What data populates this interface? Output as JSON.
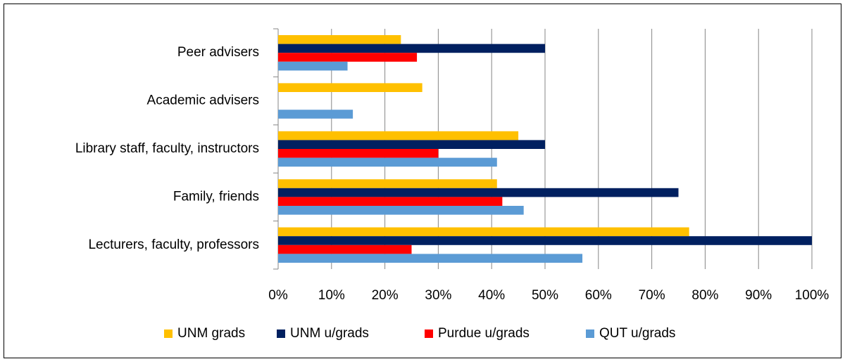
{
  "chart_data": {
    "type": "hbar",
    "categories": [
      "Peer advisers",
      "Academic advisers",
      "Library staff, faculty, instructors",
      "Family, friends",
      "Lecturers, faculty, professors"
    ],
    "series": [
      {
        "name": "UNM grads",
        "color": "#FFC000",
        "values": [
          23,
          27,
          45,
          41,
          77
        ]
      },
      {
        "name": "UNM u/grads",
        "color": "#002060",
        "values": [
          50,
          null,
          50,
          75,
          100
        ]
      },
      {
        "name": "Purdue u/grads",
        "color": "#FF0000",
        "values": [
          26,
          null,
          30,
          42,
          25
        ]
      },
      {
        "name": "QUT u/grads",
        "color": "#5B9BD5",
        "values": [
          13,
          14,
          41,
          46,
          57
        ]
      }
    ],
    "xlim": [
      0,
      100
    ],
    "xticks": [
      {
        "value": 0,
        "label": "0%"
      },
      {
        "value": 10,
        "label": "10%"
      },
      {
        "value": 20,
        "label": "20%"
      },
      {
        "value": 30,
        "label": "30%"
      },
      {
        "value": 40,
        "label": "40%"
      },
      {
        "value": 50,
        "label": "50%"
      },
      {
        "value": 60,
        "label": "60%"
      },
      {
        "value": 70,
        "label": "70%"
      },
      {
        "value": 80,
        "label": "80%"
      },
      {
        "value": 90,
        "label": "90%"
      },
      {
        "value": 100,
        "label": "100%"
      }
    ],
    "grid": true,
    "legend": "bottom"
  }
}
